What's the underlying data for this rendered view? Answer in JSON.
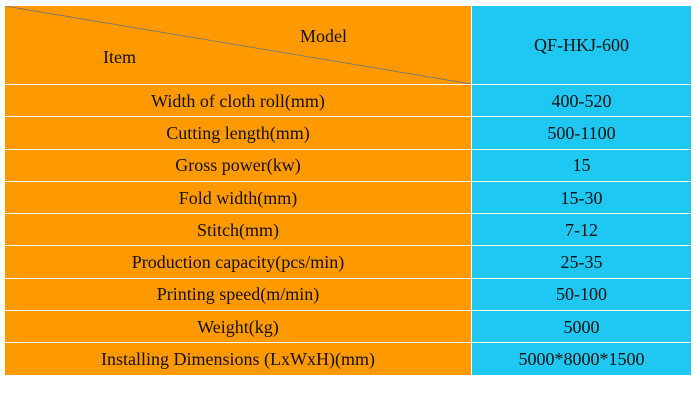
{
  "colors": {
    "label_column": "#ff9900",
    "value_column": "#1ec8f2",
    "diagonal_line": "#777777"
  },
  "header": {
    "corner_top_label": "Model",
    "corner_bottom_label": "Item",
    "model_name": "QF-HKJ-600"
  },
  "rows": [
    {
      "label": "Width of cloth roll(mm)",
      "value": "400-520"
    },
    {
      "label": "Cutting length(mm)",
      "value": "500-1100"
    },
    {
      "label": "Gross power(kw)",
      "value": "15"
    },
    {
      "label": "Fold width(mm)",
      "value": "15-30"
    },
    {
      "label": "Stitch(mm)",
      "value": "7-12"
    },
    {
      "label": "Production capacity(pcs/min)",
      "value": "25-35"
    },
    {
      "label": "Printing speed(m/min)",
      "value": "50-100"
    },
    {
      "label": "Weight(kg)",
      "value": "5000"
    },
    {
      "label": "Installing Dimensions (LxWxH)(mm)",
      "value": "5000*8000*1500"
    }
  ]
}
